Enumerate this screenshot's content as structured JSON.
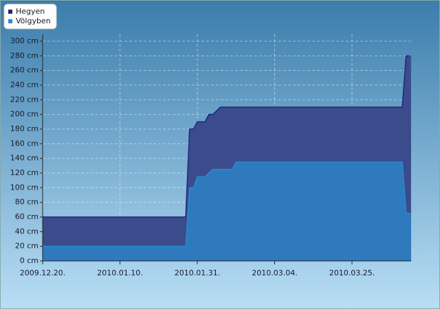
{
  "chart_data": {
    "type": "area",
    "categories": [
      "2009.12.20.",
      null,
      null,
      null,
      null,
      null,
      null,
      null,
      null,
      null,
      null,
      null,
      null,
      null,
      null,
      null,
      null,
      null,
      null,
      null,
      "2010.01.10.",
      null,
      null,
      null,
      null,
      null,
      null,
      null,
      null,
      null,
      null,
      null,
      null,
      null,
      null,
      null,
      null,
      null,
      null,
      null,
      "2010.01.31.",
      null,
      null,
      null,
      null,
      null,
      null,
      null,
      null,
      null,
      null,
      null,
      null,
      null,
      null,
      null,
      null,
      null,
      null,
      null,
      "2010.03.04.",
      null,
      null,
      null,
      null,
      null,
      null,
      null,
      null,
      null,
      null,
      null,
      null,
      null,
      null,
      null,
      null,
      null,
      null,
      null,
      "2010.03.25.",
      null,
      null,
      null,
      null,
      null,
      null,
      null,
      null,
      null,
      null,
      null,
      null,
      null,
      null,
      null
    ],
    "series": [
      {
        "name": "Hegyen",
        "color": "#1c2878",
        "fill": "#3b4b8c",
        "values": [
          60,
          60,
          60,
          60,
          60,
          60,
          60,
          60,
          60,
          60,
          60,
          60,
          60,
          60,
          60,
          60,
          60,
          60,
          60,
          60,
          60,
          60,
          60,
          60,
          60,
          60,
          60,
          60,
          60,
          60,
          60,
          60,
          60,
          60,
          60,
          60,
          60,
          60,
          180,
          180,
          190,
          190,
          190,
          200,
          200,
          205,
          210,
          210,
          210,
          210,
          210,
          210,
          210,
          210,
          210,
          210,
          210,
          210,
          210,
          210,
          210,
          210,
          210,
          210,
          210,
          210,
          210,
          210,
          210,
          210,
          210,
          210,
          210,
          210,
          210,
          210,
          210,
          210,
          210,
          210,
          210,
          210,
          210,
          210,
          210,
          210,
          210,
          210,
          210,
          210,
          210,
          210,
          210,
          210,
          280,
          280
        ]
      },
      {
        "name": "Völgyben",
        "color": "#2a8ad0",
        "fill": "#2e7abd",
        "values": [
          20,
          20,
          20,
          20,
          20,
          20,
          20,
          20,
          20,
          20,
          20,
          20,
          20,
          20,
          20,
          20,
          20,
          20,
          20,
          20,
          20,
          20,
          20,
          20,
          20,
          20,
          20,
          20,
          20,
          20,
          20,
          20,
          20,
          20,
          20,
          20,
          20,
          20,
          100,
          100,
          115,
          115,
          115,
          120,
          125,
          125,
          125,
          125,
          125,
          125,
          135,
          135,
          135,
          135,
          135,
          135,
          135,
          135,
          135,
          135,
          135,
          135,
          135,
          135,
          135,
          135,
          135,
          135,
          135,
          135,
          135,
          135,
          135,
          135,
          135,
          135,
          135,
          135,
          135,
          135,
          135,
          135,
          135,
          135,
          135,
          135,
          135,
          135,
          135,
          135,
          135,
          135,
          135,
          135,
          65,
          65
        ]
      }
    ],
    "ylim": [
      0,
      300
    ],
    "yticks": [
      {
        "value": 0,
        "label": "0 cm"
      },
      {
        "value": 20,
        "label": "20 cm"
      },
      {
        "value": 40,
        "label": "40 cm"
      },
      {
        "value": 60,
        "label": "60 cm"
      },
      {
        "value": 80,
        "label": "80 cm"
      },
      {
        "value": 100,
        "label": "100 cm"
      },
      {
        "value": 120,
        "label": "120 cm"
      },
      {
        "value": 140,
        "label": "140 cm"
      },
      {
        "value": 160,
        "label": "160 cm"
      },
      {
        "value": 180,
        "label": "180 cm"
      },
      {
        "value": 200,
        "label": "200 cm"
      },
      {
        "value": 220,
        "label": "220 cm"
      },
      {
        "value": 240,
        "label": "240 cm"
      },
      {
        "value": 260,
        "label": "260 cm"
      },
      {
        "value": 280,
        "label": "280 cm"
      },
      {
        "value": 300,
        "label": "300 cm"
      }
    ],
    "grid": true,
    "legend": "top-left"
  }
}
